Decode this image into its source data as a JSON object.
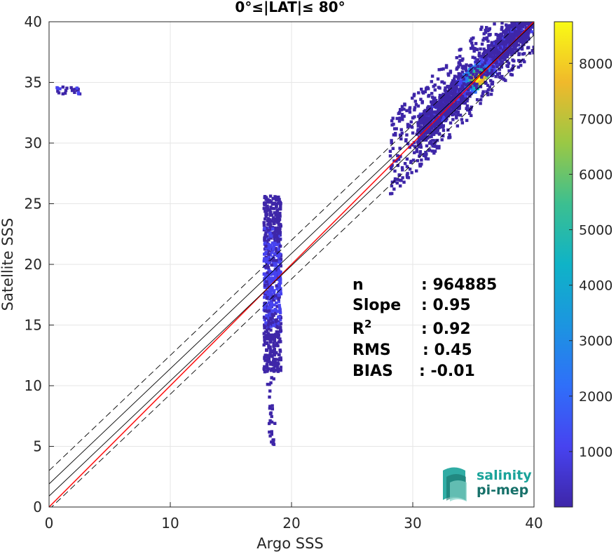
{
  "chart_data": {
    "type": "heatmap",
    "title": "0°≤|LAT|≤ 80°",
    "xlabel": "Argo SSS",
    "ylabel": "Satellite SSS",
    "xlim": [
      0,
      40
    ],
    "ylim": [
      0,
      40
    ],
    "xticks": [
      "0",
      "10",
      "20",
      "30",
      "40"
    ],
    "yticks": [
      "0",
      "5",
      "10",
      "15",
      "20",
      "25",
      "30",
      "35",
      "40"
    ],
    "grid": true,
    "colorbar": {
      "range": [
        0,
        8750
      ],
      "ticks": [
        "1000",
        "2000",
        "3000",
        "4000",
        "5000",
        "6000",
        "7000",
        "8000"
      ],
      "colormap": "parula"
    },
    "series": [
      {
        "type": "line",
        "style": "red-solid",
        "color": "#ff0000",
        "x": [
          0,
          40
        ],
        "y": [
          0,
          40
        ]
      },
      {
        "type": "line",
        "style": "black-solid",
        "color": "#000000",
        "x": [
          0,
          40
        ],
        "y": [
          1.9,
          39.9
        ]
      },
      {
        "type": "line",
        "style": "black-solid",
        "color": "#000000",
        "x": [
          0,
          40
        ],
        "y": [
          0.9,
          38.9
        ]
      },
      {
        "type": "line",
        "style": "black-dashed",
        "color": "#000000",
        "x": [
          0,
          40
        ],
        "y": [
          3.0,
          41.0
        ]
      },
      {
        "type": "line",
        "style": "black-dashed",
        "color": "#000000",
        "x": [
          0,
          40
        ],
        "y": [
          -0.2,
          37.8
        ]
      }
    ],
    "density_clusters": [
      {
        "x_center": 35.3,
        "y_center": 35.2,
        "peak": 8700
      },
      {
        "x_center": 18.2,
        "y_center": 18.5,
        "peak": 1500
      },
      {
        "x_center": 1.5,
        "y_center": 34.2,
        "peak": 800
      }
    ],
    "stats": [
      {
        "label": "n",
        "sup": "",
        "value": ": 964885"
      },
      {
        "label": "Slope",
        "sup": "",
        "value": ": 0.95"
      },
      {
        "label": "R",
        "sup": "2",
        "value": ": 0.92"
      },
      {
        "label": "RMS",
        "sup": "",
        "value": ": 0.45"
      },
      {
        "label": "BIAS",
        "sup": "",
        "value": ": -0.01"
      }
    ]
  },
  "logo": {
    "line1": "salinity",
    "line2": "pi-mep",
    "color1": "#1aa39a",
    "color2": "#17716a"
  }
}
